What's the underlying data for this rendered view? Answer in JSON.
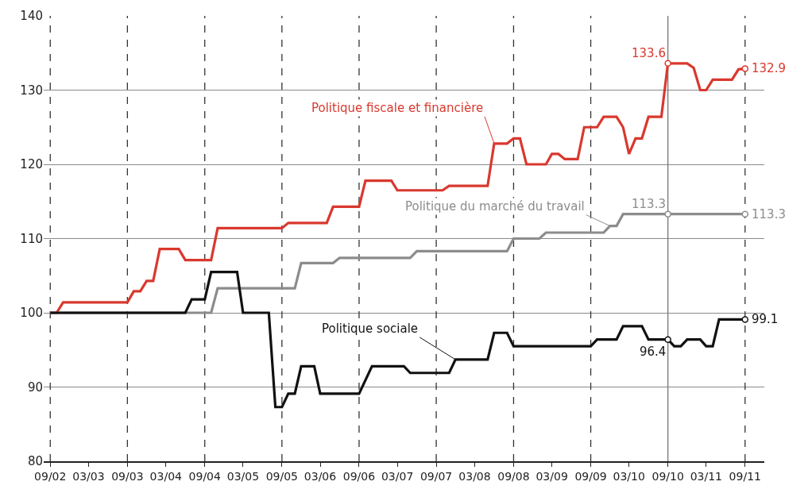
{
  "chart_data": {
    "type": "line",
    "legend": false,
    "grid": "y",
    "line_style": "solid",
    "marker": "none",
    "xlim": [
      "2002-08",
      "2011-12"
    ],
    "ylim": [
      80,
      140
    ],
    "yticks": [
      80,
      90,
      100,
      110,
      120,
      130,
      140
    ],
    "xticks": [
      {
        "value": "2002-09",
        "label": "09/02"
      },
      {
        "value": "2003-03",
        "label": "03/03"
      },
      {
        "value": "2003-09",
        "label": "09/03"
      },
      {
        "value": "2004-03",
        "label": "03/04"
      },
      {
        "value": "2004-09",
        "label": "09/04"
      },
      {
        "value": "2005-03",
        "label": "03/05"
      },
      {
        "value": "2005-09",
        "label": "09/05"
      },
      {
        "value": "2006-03",
        "label": "03/06"
      },
      {
        "value": "2006-09",
        "label": "09/06"
      },
      {
        "value": "2007-03",
        "label": "03/07"
      },
      {
        "value": "2007-09",
        "label": "09/07"
      },
      {
        "value": "2008-03",
        "label": "03/08"
      },
      {
        "value": "2008-09",
        "label": "09/08"
      },
      {
        "value": "2009-03",
        "label": "03/09"
      },
      {
        "value": "2009-09",
        "label": "09/09"
      },
      {
        "value": "2010-03",
        "label": "03/10"
      },
      {
        "value": "2010-09",
        "label": "09/10"
      },
      {
        "value": "2011-03",
        "label": "03/11"
      },
      {
        "value": "2011-09",
        "label": "09/11"
      }
    ],
    "series": [
      {
        "name": "Politique fiscale et financière",
        "color": "#d9382e",
        "x": [
          "2002-09",
          "2002-10",
          "2002-11",
          "2003-09",
          "2003-10",
          "2003-11",
          "2003-12",
          "2004-01",
          "2004-02",
          "2004-05",
          "2004-06",
          "2004-10",
          "2004-11",
          "2005-09",
          "2005-10",
          "2006-04",
          "2006-05",
          "2006-09",
          "2006-10",
          "2007-02",
          "2007-03",
          "2007-10",
          "2007-11",
          "2008-05",
          "2008-06",
          "2008-08",
          "2008-09",
          "2008-10",
          "2008-11",
          "2009-02",
          "2009-03",
          "2009-04",
          "2009-05",
          "2009-07",
          "2009-08",
          "2009-10",
          "2009-11",
          "2010-01",
          "2010-02",
          "2010-03",
          "2010-04",
          "2010-05",
          "2010-06",
          "2010-08",
          "2010-09",
          "2010-12",
          "2011-01",
          "2011-02",
          "2011-03",
          "2011-04",
          "2011-07",
          "2011-08",
          "2011-09"
        ],
        "values": [
          100,
          100,
          101.4,
          101.4,
          102.9,
          102.9,
          104.3,
          104.3,
          108.6,
          108.6,
          107.1,
          107.1,
          111.4,
          111.4,
          112.1,
          112.1,
          114.3,
          114.3,
          117.8,
          117.8,
          116.5,
          116.5,
          117.1,
          117.1,
          122.8,
          122.8,
          123.5,
          123.5,
          120,
          120,
          121.4,
          121.4,
          120.7,
          120.7,
          125,
          125,
          126.4,
          126.4,
          125,
          121.4,
          123.5,
          123.5,
          126.4,
          126.4,
          133.6,
          133.6,
          133,
          130,
          130,
          131.4,
          131.4,
          132.8,
          132.9
        ]
      },
      {
        "name": "Politique du marché du travail",
        "color": "#8c8c8c",
        "x": [
          "2002-09",
          "2004-10",
          "2004-11",
          "2005-11",
          "2005-12",
          "2006-05",
          "2006-06",
          "2007-05",
          "2007-06",
          "2008-08",
          "2008-09",
          "2009-01",
          "2009-02",
          "2009-11",
          "2009-12",
          "2010-01",
          "2010-02",
          "2011-09"
        ],
        "values": [
          100,
          100,
          103.3,
          103.3,
          106.7,
          106.7,
          107.4,
          107.4,
          108.3,
          108.3,
          110,
          110,
          110.8,
          110.8,
          111.7,
          111.7,
          113.3,
          113.3
        ]
      },
      {
        "name": "Politique sociale",
        "color": "#111111",
        "x": [
          "2002-09",
          "2004-06",
          "2004-07",
          "2004-09",
          "2004-10",
          "2005-02",
          "2005-03",
          "2005-07",
          "2005-08",
          "2005-09",
          "2005-10",
          "2005-11",
          "2005-12",
          "2006-02",
          "2006-03",
          "2006-09",
          "2006-11",
          "2007-04",
          "2007-05",
          "2007-11",
          "2007-12",
          "2008-05",
          "2008-06",
          "2008-08",
          "2008-09",
          "2009-09",
          "2009-10",
          "2010-01",
          "2010-02",
          "2010-05",
          "2010-06",
          "2010-09",
          "2010-10",
          "2010-11",
          "2010-12",
          "2011-02",
          "2011-03",
          "2011-04",
          "2011-05",
          "2011-09"
        ],
        "values": [
          100,
          100,
          101.8,
          101.8,
          105.5,
          105.5,
          100,
          100,
          87.3,
          87.3,
          89.1,
          89.1,
          92.8,
          92.8,
          89.1,
          89.1,
          92.8,
          92.8,
          91.9,
          91.9,
          93.7,
          93.7,
          97.3,
          97.3,
          95.5,
          95.5,
          96.4,
          96.4,
          98.2,
          98.2,
          96.4,
          96.4,
          95.5,
          95.5,
          96.4,
          96.4,
          95.5,
          95.5,
          99.1,
          99.1
        ]
      }
    ],
    "annotations": [
      {
        "text": "133.6",
        "x": "2010-09",
        "y": 133.6
      },
      {
        "text": "132.9",
        "x": "2011-09",
        "y": 132.9
      },
      {
        "text": "113.3",
        "x": "2010-09",
        "y": 113.3
      },
      {
        "text": "113.3",
        "x": "2011-09",
        "y": 113.3
      },
      {
        "text": "96.4",
        "x": "2010-09",
        "y": 96.4
      },
      {
        "text": "99.1",
        "x": "2011-09",
        "y": 99.1
      }
    ],
    "ref_lines": [
      {
        "axis": "x",
        "value": "2002-09",
        "color": "#333333",
        "line_style": "dashed"
      },
      {
        "axis": "x",
        "value": "2003-09",
        "color": "#333333",
        "line_style": "dashed"
      },
      {
        "axis": "x",
        "value": "2004-09",
        "color": "#333333",
        "line_style": "dashed"
      },
      {
        "axis": "x",
        "value": "2005-09",
        "color": "#333333",
        "line_style": "dashed"
      },
      {
        "axis": "x",
        "value": "2006-09",
        "color": "#333333",
        "line_style": "dashed"
      },
      {
        "axis": "x",
        "value": "2007-09",
        "color": "#333333",
        "line_style": "dashed"
      },
      {
        "axis": "x",
        "value": "2008-09",
        "color": "#333333",
        "line_style": "dashed"
      },
      {
        "axis": "x",
        "value": "2009-09",
        "color": "#333333",
        "line_style": "dashed"
      },
      {
        "axis": "x",
        "value": "2010-09",
        "color": "#777777",
        "line_style": "solid"
      },
      {
        "axis": "x",
        "value": "2011-09",
        "color": "#333333",
        "line_style": "dashed"
      }
    ]
  }
}
